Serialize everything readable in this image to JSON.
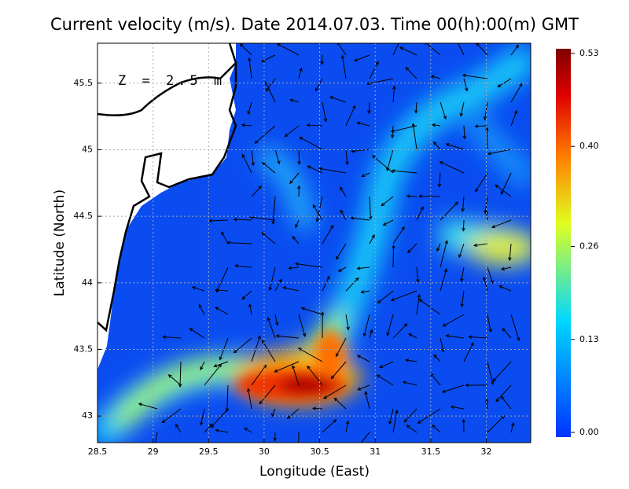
{
  "chart_data": {
    "type": "map",
    "title": "Current velocity (m/s). Date 2014.07.03. Time 00(h):00(m) GMT",
    "x_label": "Longitude (East)",
    "y_label": "Latitude (North)",
    "annotation": "Z = 2.5 m",
    "xlim": [
      28.5,
      32.4
    ],
    "ylim": [
      42.8,
      45.8
    ],
    "xticks": [
      28.5,
      29,
      29.5,
      30,
      30.5,
      31,
      31.5,
      32
    ],
    "yticks": [
      43,
      43.5,
      44,
      44.5,
      45,
      45.5
    ],
    "grid": true,
    "colorbar": {
      "lim": [
        0,
        0.53
      ],
      "ticks": [
        {
          "value": 0,
          "label": "0.00"
        },
        {
          "value": 0.13,
          "label": "0.13"
        },
        {
          "value": 0.26,
          "label": "0.26"
        },
        {
          "value": 0.4,
          "label": "0.40"
        },
        {
          "value": 0.53,
          "label": "0.53"
        }
      ]
    }
  }
}
